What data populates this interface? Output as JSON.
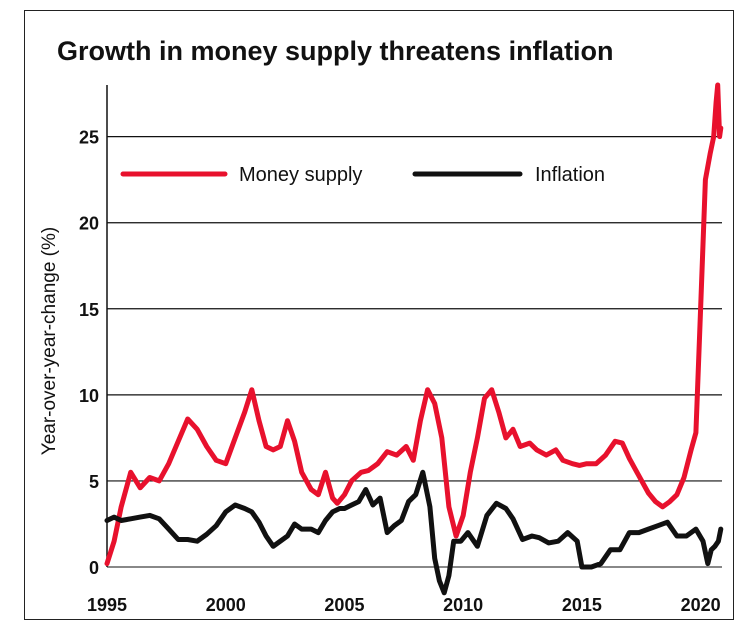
{
  "chart_data": {
    "type": "line",
    "title": "Growth in money supply threatens inflation",
    "xlabel": "",
    "ylabel": "Year-over-year-change (%)",
    "xlim": [
      1995,
      2020.9
    ],
    "ylim": [
      0,
      28
    ],
    "grid": "horizontal",
    "legend_placement": "top-left",
    "x_ticks": [
      "1995",
      "2000",
      "2005",
      "2010",
      "2015",
      "2020"
    ],
    "y_ticks": [
      "0",
      "5",
      "10",
      "15",
      "20",
      "25"
    ],
    "series": [
      {
        "name": "Money supply",
        "color": "#e8112d",
        "points": [
          [
            1995.0,
            0.2
          ],
          [
            1995.3,
            1.5
          ],
          [
            1995.6,
            3.5
          ],
          [
            1996.0,
            5.5
          ],
          [
            1996.4,
            4.6
          ],
          [
            1996.8,
            5.2
          ],
          [
            1997.2,
            5.0
          ],
          [
            1997.6,
            6.0
          ],
          [
            1998.0,
            7.3
          ],
          [
            1998.4,
            8.6
          ],
          [
            1998.8,
            8.0
          ],
          [
            1999.2,
            7.0
          ],
          [
            1999.6,
            6.2
          ],
          [
            2000.0,
            6.0
          ],
          [
            2000.4,
            7.5
          ],
          [
            2000.8,
            9.0
          ],
          [
            2001.1,
            10.3
          ],
          [
            2001.4,
            8.5
          ],
          [
            2001.7,
            7.0
          ],
          [
            2002.0,
            6.8
          ],
          [
            2002.3,
            7.0
          ],
          [
            2002.6,
            8.5
          ],
          [
            2002.9,
            7.3
          ],
          [
            2003.2,
            5.5
          ],
          [
            2003.6,
            4.5
          ],
          [
            2003.9,
            4.2
          ],
          [
            2004.2,
            5.5
          ],
          [
            2004.5,
            4.0
          ],
          [
            2004.7,
            3.7
          ],
          [
            2005.0,
            4.2
          ],
          [
            2005.3,
            5.0
          ],
          [
            2005.7,
            5.5
          ],
          [
            2006.0,
            5.6
          ],
          [
            2006.4,
            6.0
          ],
          [
            2006.8,
            6.7
          ],
          [
            2007.2,
            6.5
          ],
          [
            2007.6,
            7.0
          ],
          [
            2007.9,
            6.2
          ],
          [
            2008.2,
            8.5
          ],
          [
            2008.5,
            10.3
          ],
          [
            2008.8,
            9.5
          ],
          [
            2009.1,
            7.5
          ],
          [
            2009.4,
            3.5
          ],
          [
            2009.7,
            1.8
          ],
          [
            2010.0,
            3.0
          ],
          [
            2010.3,
            5.5
          ],
          [
            2010.6,
            7.5
          ],
          [
            2010.9,
            9.8
          ],
          [
            2011.2,
            10.3
          ],
          [
            2011.5,
            9.0
          ],
          [
            2011.8,
            7.5
          ],
          [
            2012.1,
            8.0
          ],
          [
            2012.4,
            7.0
          ],
          [
            2012.8,
            7.2
          ],
          [
            2013.1,
            6.8
          ],
          [
            2013.5,
            6.5
          ],
          [
            2013.9,
            6.8
          ],
          [
            2014.2,
            6.2
          ],
          [
            2014.6,
            6.0
          ],
          [
            2014.9,
            5.9
          ],
          [
            2015.2,
            6.0
          ],
          [
            2015.6,
            6.0
          ],
          [
            2016.0,
            6.5
          ],
          [
            2016.4,
            7.3
          ],
          [
            2016.7,
            7.2
          ],
          [
            2017.0,
            6.3
          ],
          [
            2017.4,
            5.3
          ],
          [
            2017.8,
            4.3
          ],
          [
            2018.1,
            3.8
          ],
          [
            2018.4,
            3.5
          ],
          [
            2018.7,
            3.8
          ],
          [
            2019.0,
            4.2
          ],
          [
            2019.3,
            5.2
          ],
          [
            2019.6,
            6.8
          ],
          [
            2019.8,
            7.8
          ],
          [
            2020.0,
            15.0
          ],
          [
            2020.2,
            22.5
          ],
          [
            2020.4,
            24.0
          ],
          [
            2020.55,
            25.0
          ],
          [
            2020.65,
            27.0
          ],
          [
            2020.72,
            28.0
          ],
          [
            2020.8,
            25.0
          ],
          [
            2020.85,
            25.5
          ]
        ]
      },
      {
        "name": "Inflation",
        "color": "#111111",
        "points": [
          [
            1995.0,
            2.7
          ],
          [
            1995.3,
            2.9
          ],
          [
            1995.6,
            2.7
          ],
          [
            1996.0,
            2.8
          ],
          [
            1996.4,
            2.9
          ],
          [
            1996.8,
            3.0
          ],
          [
            1997.2,
            2.8
          ],
          [
            1997.6,
            2.2
          ],
          [
            1998.0,
            1.6
          ],
          [
            1998.4,
            1.6
          ],
          [
            1998.8,
            1.5
          ],
          [
            1999.2,
            1.9
          ],
          [
            1999.6,
            2.4
          ],
          [
            2000.0,
            3.2
          ],
          [
            2000.4,
            3.6
          ],
          [
            2000.8,
            3.4
          ],
          [
            2001.1,
            3.2
          ],
          [
            2001.4,
            2.6
          ],
          [
            2001.7,
            1.8
          ],
          [
            2002.0,
            1.2
          ],
          [
            2002.3,
            1.5
          ],
          [
            2002.6,
            1.8
          ],
          [
            2002.9,
            2.5
          ],
          [
            2003.2,
            2.2
          ],
          [
            2003.6,
            2.2
          ],
          [
            2003.9,
            2.0
          ],
          [
            2004.2,
            2.7
          ],
          [
            2004.5,
            3.2
          ],
          [
            2004.8,
            3.4
          ],
          [
            2005.0,
            3.4
          ],
          [
            2005.3,
            3.6
          ],
          [
            2005.6,
            3.8
          ],
          [
            2005.9,
            4.5
          ],
          [
            2006.2,
            3.6
          ],
          [
            2006.5,
            4.0
          ],
          [
            2006.8,
            2.0
          ],
          [
            2007.1,
            2.4
          ],
          [
            2007.4,
            2.7
          ],
          [
            2007.7,
            3.8
          ],
          [
            2008.0,
            4.2
          ],
          [
            2008.3,
            5.5
          ],
          [
            2008.6,
            3.5
          ],
          [
            2008.8,
            0.5
          ],
          [
            2009.0,
            -0.8
          ],
          [
            2009.2,
            -1.5
          ],
          [
            2009.4,
            -0.5
          ],
          [
            2009.6,
            1.5
          ],
          [
            2009.9,
            1.5
          ],
          [
            2010.2,
            2.0
          ],
          [
            2010.6,
            1.2
          ],
          [
            2011.0,
            3.0
          ],
          [
            2011.4,
            3.7
          ],
          [
            2011.8,
            3.4
          ],
          [
            2012.1,
            2.8
          ],
          [
            2012.5,
            1.6
          ],
          [
            2012.9,
            1.8
          ],
          [
            2013.2,
            1.7
          ],
          [
            2013.6,
            1.4
          ],
          [
            2014.0,
            1.5
          ],
          [
            2014.4,
            2.0
          ],
          [
            2014.8,
            1.5
          ],
          [
            2015.0,
            0.0
          ],
          [
            2015.4,
            0.0
          ],
          [
            2015.8,
            0.2
          ],
          [
            2016.2,
            1.0
          ],
          [
            2016.6,
            1.0
          ],
          [
            2017.0,
            2.0
          ],
          [
            2017.4,
            2.0
          ],
          [
            2017.8,
            2.2
          ],
          [
            2018.2,
            2.4
          ],
          [
            2018.6,
            2.6
          ],
          [
            2019.0,
            1.8
          ],
          [
            2019.4,
            1.8
          ],
          [
            2019.8,
            2.2
          ],
          [
            2020.1,
            1.5
          ],
          [
            2020.3,
            0.2
          ],
          [
            2020.45,
            1.0
          ],
          [
            2020.6,
            1.2
          ],
          [
            2020.75,
            1.5
          ],
          [
            2020.85,
            2.2
          ]
        ]
      }
    ]
  }
}
